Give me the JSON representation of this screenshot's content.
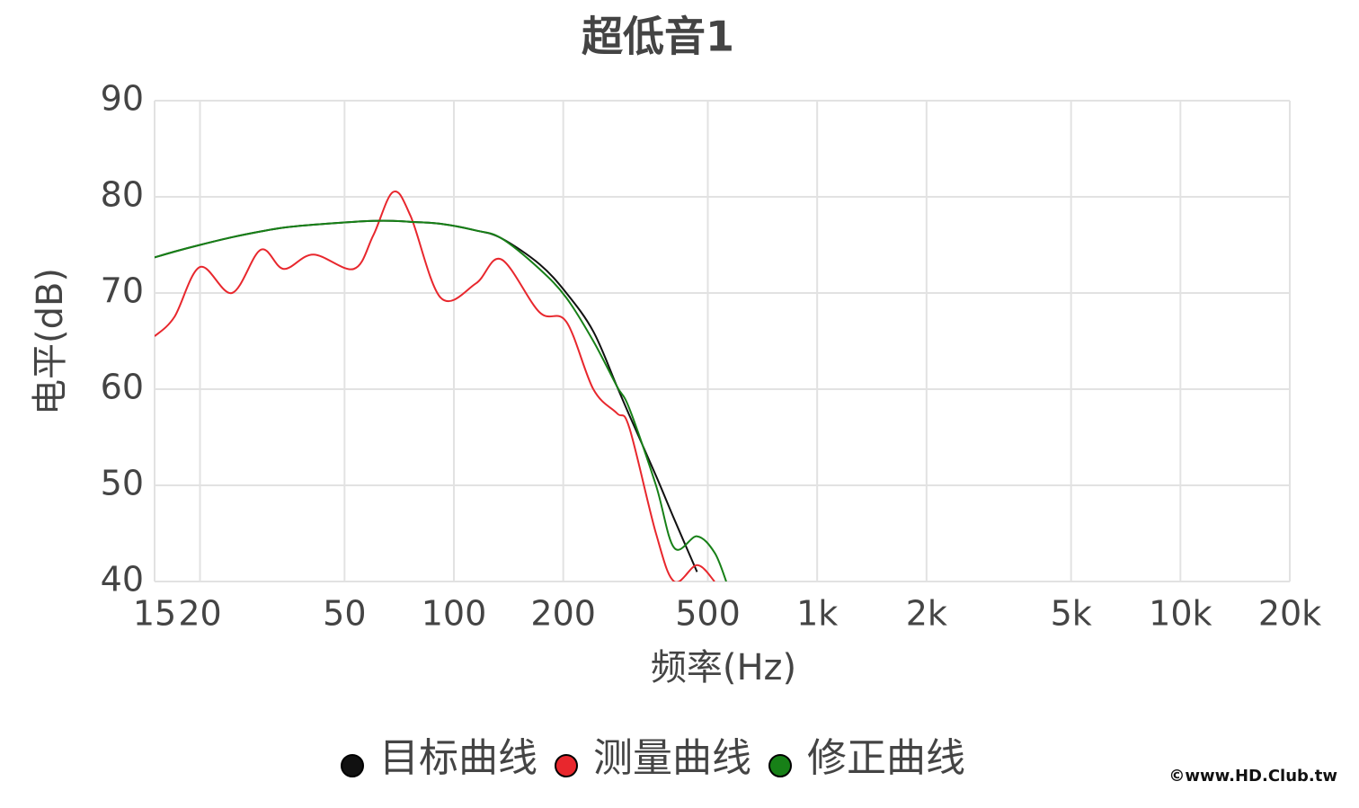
{
  "chart_data": {
    "type": "line",
    "title": "超低音1",
    "xlabel": "频率(Hz)",
    "ylabel": "电平(dB)",
    "log_x": true,
    "grid": true,
    "x": [
      15,
      17,
      20,
      24.5,
      29.4,
      34,
      41,
      53,
      60,
      68,
      76,
      92,
      115,
      135,
      172,
      204,
      242,
      281,
      304,
      360,
      404,
      467,
      522,
      562
    ],
    "series": [
      {
        "name": "目标曲线",
        "color": "#111111",
        "values": [
          73.7,
          74.3,
          75,
          75.8,
          76.4,
          76.8,
          77.1,
          77.4,
          77.5,
          77.5,
          77.4,
          77.2,
          76.5,
          75.7,
          73,
          70,
          66,
          60.3,
          57.3,
          51,
          46.5,
          41,
          null,
          null
        ]
      },
      {
        "name": "测量曲线",
        "color": "#e8272d",
        "values": [
          65.5,
          67.5,
          72.7,
          70,
          74.5,
          72.5,
          74,
          72.5,
          76,
          80.5,
          78,
          69.5,
          71,
          73.5,
          68,
          67,
          60,
          57.5,
          56,
          45,
          40,
          41.7,
          40,
          null
        ]
      },
      {
        "name": "修正曲线",
        "color": "#178017",
        "values": [
          73.7,
          74.3,
          75,
          75.8,
          76.4,
          76.8,
          77.1,
          77.4,
          77.5,
          77.5,
          77.4,
          77.2,
          76.5,
          75.7,
          72.5,
          69.5,
          65,
          60.3,
          58,
          50,
          43.5,
          44.7,
          43,
          40
        ]
      }
    ],
    "xlim": [
      15,
      20000
    ],
    "xticks": [
      15,
      20,
      50,
      100,
      200,
      500,
      {
        "value": 1000,
        "label": "1k"
      },
      {
        "value": 2000,
        "label": "2k"
      },
      {
        "value": 5000,
        "label": "5k"
      },
      {
        "value": 10000,
        "label": "10k"
      },
      {
        "value": 20000,
        "label": "20k"
      }
    ],
    "ylim": [
      40,
      90
    ],
    "yticks": [
      40,
      50,
      60,
      70,
      80,
      90
    ],
    "watermark": "©www.HD.Club.tw"
  }
}
